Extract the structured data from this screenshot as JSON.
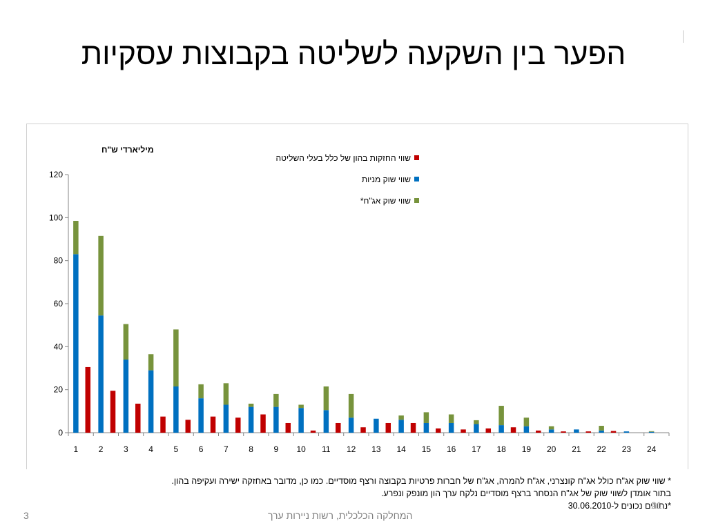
{
  "slide": {
    "title": "הפער בין השקעה לשליטה בקבוצות עסקיות",
    "footnote_1": "* שווי שוק אג\"ח כולל אג\"ח קונצרני, אג\"ח להמרה, אג\"ח של חברות פרטיות בקבוצה ורצף מוסדיים. כמו כן, מדובר באחזקה ישירה ועקיפה בהון.",
    "footnote_2": "בתור אומדן לשווי שוק של אג\"ח הנסחר ברצף מוסדיים נלקח ערך הון מונפק ונפרע.",
    "footnote_3": "*נתונים נכונים ל-30.06.2010",
    "footer": "המחלקה הכלכלית, רשות ניירות ערך",
    "page_number": "3",
    "page_ghost": "21"
  },
  "chart_data": {
    "type": "bar",
    "ylabel": "מיליארדי ש\"ח",
    "ylim": [
      0,
      120
    ],
    "yticks": [
      0,
      20,
      40,
      60,
      80,
      100,
      120
    ],
    "grid": false,
    "legend_position": "top-right",
    "categories": [
      "1",
      "2",
      "3",
      "4",
      "5",
      "6",
      "7",
      "8",
      "9",
      "10",
      "11",
      "12",
      "13",
      "14",
      "15",
      "16",
      "17",
      "18",
      "19",
      "20",
      "21",
      "22",
      "23",
      "24"
    ],
    "series": [
      {
        "name": "שווי החזקות בהון של כלל בעלי השליטה",
        "color": "#c00000",
        "role": "controller",
        "values": [
          30.5,
          19.5,
          13.5,
          7.5,
          6.0,
          7.5,
          7.0,
          8.5,
          4.5,
          1.0,
          4.5,
          2.5,
          4.5,
          4.5,
          2.0,
          1.5,
          2.0,
          2.5,
          1.0,
          0.6,
          0.6,
          0.8,
          0,
          0
        ]
      },
      {
        "name": "שווי שוק מניות",
        "color": "#0070c0",
        "role": "stack-base",
        "values": [
          83,
          54.5,
          34,
          29,
          21.5,
          16,
          13,
          12,
          12,
          11.5,
          10.5,
          7,
          6.5,
          6,
          4.5,
          4.5,
          4,
          3.5,
          3,
          1.5,
          1.5,
          1.0,
          0.6,
          0.4
        ]
      },
      {
        "name": "שווי שוק אג\"ח*",
        "color": "#77933c",
        "role": "stack-top",
        "values": [
          15.5,
          37,
          16.5,
          7.5,
          26.5,
          6.5,
          10,
          1.5,
          6,
          1.5,
          11,
          11,
          0,
          2,
          5,
          4,
          1.8,
          9,
          4,
          1.5,
          0,
          2.2,
          0,
          0.3
        ]
      }
    ]
  }
}
